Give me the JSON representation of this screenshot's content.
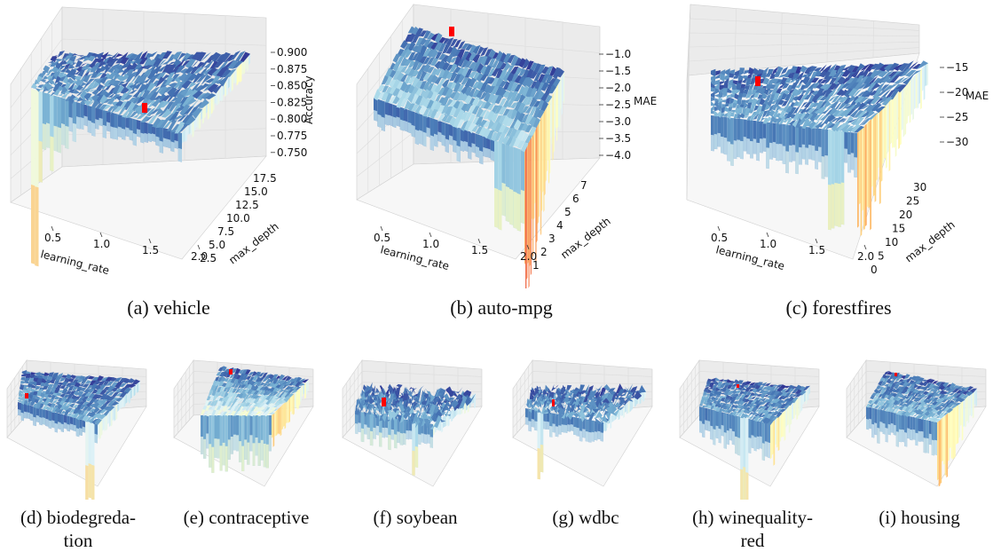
{
  "chart_data": [
    {
      "id": "a",
      "type": "surface3d",
      "caption": "(a) vehicle",
      "xlabel": "learning_rate",
      "ylabel": "max_depth",
      "zlabel": "Accuracy",
      "x_ticks": [
        "0.5",
        "1.0",
        "1.5",
        "2.0"
      ],
      "y_ticks": [
        "2.5",
        "5.0",
        "7.5",
        "10.0",
        "12.5",
        "15.0",
        "17.5"
      ],
      "z_ticks": [
        "0.900",
        "0.875",
        "0.850",
        "0.825",
        "0.800",
        "0.775",
        "0.750"
      ],
      "best_point": {
        "learning_rate": 1.1,
        "max_depth": 8,
        "value": 0.825
      }
    },
    {
      "id": "b",
      "type": "surface3d",
      "caption": "(b) auto-mpg",
      "xlabel": "learning_rate",
      "ylabel": "max_depth",
      "zlabel": "MAE",
      "x_ticks": [
        "0.5",
        "1.0",
        "1.5",
        "2.0"
      ],
      "y_ticks": [
        "1",
        "2",
        "3",
        "4",
        "5",
        "6",
        "7"
      ],
      "z_ticks": [
        "−1.0",
        "−1.5",
        "−2.0",
        "−2.5",
        "−3.0",
        "−3.5",
        "−4.0"
      ],
      "best_point": {
        "learning_rate": 0.6,
        "max_depth": 6,
        "value": -1.1
      }
    },
    {
      "id": "c",
      "type": "surface3d",
      "caption": "(c) forestfires",
      "xlabel": "learning_rate",
      "ylabel": "max_depth",
      "zlabel": "MAE",
      "x_ticks": [
        "0.5",
        "1.0",
        "1.5",
        "2.0"
      ],
      "y_ticks": [
        "0",
        "5",
        "10",
        "15",
        "20",
        "25",
        "30"
      ],
      "z_ticks": [
        "−15",
        "−20",
        "−25",
        "−30"
      ],
      "best_point": {
        "learning_rate": 0.7,
        "max_depth": 20,
        "value": -17
      }
    },
    {
      "id": "d",
      "type": "surface3d",
      "caption_lines": [
        "(d) biodegreda-",
        "tion"
      ]
    },
    {
      "id": "e",
      "type": "surface3d",
      "caption_lines": [
        "(e) contraceptive"
      ]
    },
    {
      "id": "f",
      "type": "surface3d",
      "caption_lines": [
        "(f) soybean"
      ]
    },
    {
      "id": "g",
      "type": "surface3d",
      "caption_lines": [
        "(g) wdbc"
      ]
    },
    {
      "id": "h",
      "type": "surface3d",
      "caption_lines": [
        "(h) winequality-",
        "red"
      ]
    },
    {
      "id": "i",
      "type": "surface3d",
      "caption_lines": [
        "(i) housing"
      ]
    }
  ],
  "colormap": [
    "#a50026",
    "#d73027",
    "#f46d43",
    "#fdae61",
    "#fee090",
    "#ffffbf",
    "#e0f3f8",
    "#abd9e9",
    "#74add1",
    "#4575b4",
    "#313695"
  ],
  "marker_color": "#ff0000"
}
